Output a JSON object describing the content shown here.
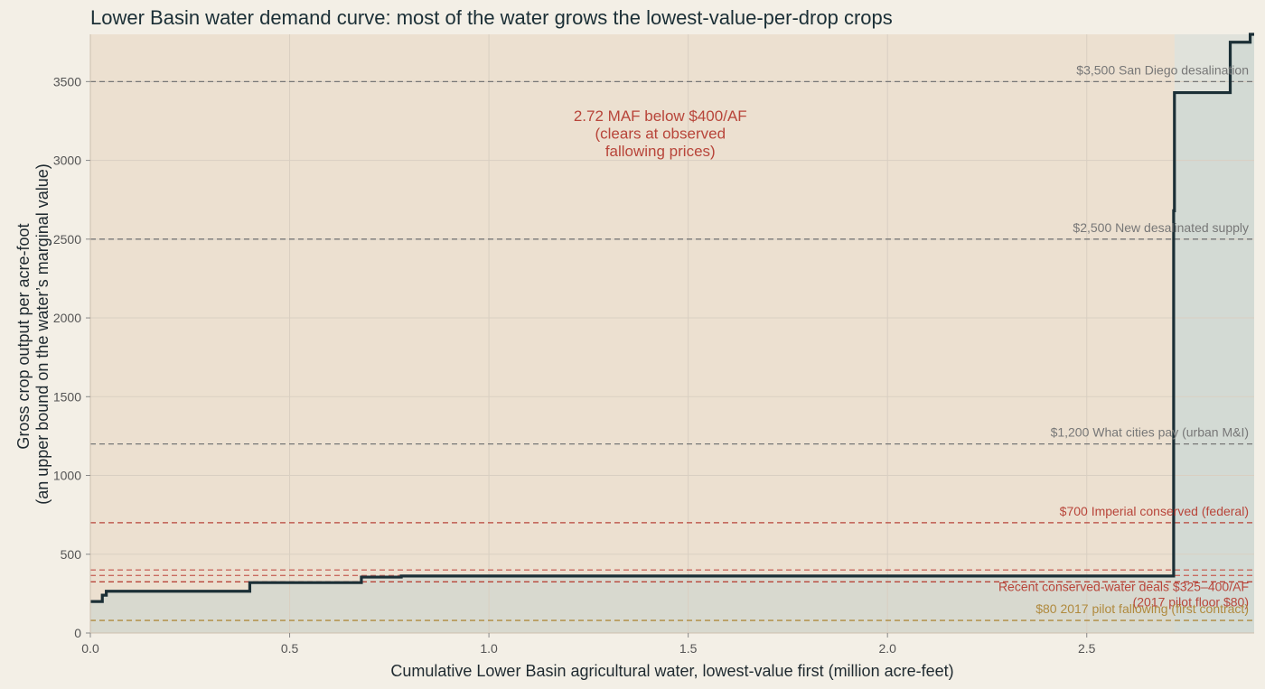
{
  "chart_data": {
    "type": "line",
    "subtype": "step",
    "title": "Lower Basin water demand curve: most of the water grows the lowest-value-per-drop crops",
    "xlabel": "Cumulative Lower Basin agricultural water, lowest-value first  (million acre-feet)",
    "ylabel": [
      "Gross crop output per acre-foot",
      "(an upper bound on the water’s marginal value)"
    ],
    "xlim": [
      0,
      2.92
    ],
    "ylim": [
      0,
      3800
    ],
    "x_ticks": [
      0.0,
      0.5,
      1.0,
      1.5,
      2.0,
      2.5
    ],
    "x_tick_labels": [
      "0.0",
      "0.5",
      "1.0",
      "1.5",
      "2.0",
      "2.5"
    ],
    "y_ticks": [
      0,
      500,
      1000,
      1500,
      2000,
      2500,
      3000,
      3500
    ],
    "y_tick_labels": [
      "0",
      "500",
      "1000",
      "1500",
      "2000",
      "2500",
      "3000",
      "3500"
    ],
    "grid": true,
    "series": [
      {
        "color": "#1b2f36",
        "steps": [
          {
            "x0": 0.0,
            "x1": 0.03,
            "y": 200
          },
          {
            "x0": 0.03,
            "x1": 0.04,
            "y": 240
          },
          {
            "x0": 0.04,
            "x1": 0.4,
            "y": 265
          },
          {
            "x0": 0.4,
            "x1": 0.68,
            "y": 320
          },
          {
            "x0": 0.68,
            "x1": 0.78,
            "y": 355
          },
          {
            "x0": 0.78,
            "x1": 2.718,
            "y": 362
          },
          {
            "x0": 2.718,
            "x1": 2.72,
            "y": 2680
          },
          {
            "x0": 2.72,
            "x1": 2.86,
            "y": 3430
          },
          {
            "x0": 2.86,
            "x1": 2.91,
            "y": 3750
          },
          {
            "x0": 2.91,
            "x1": 2.92,
            "y": 3800
          }
        ]
      }
    ],
    "shaded_regions": [
      {
        "x0": 0.0,
        "x1": 2.72,
        "color": "#e8d2b9"
      },
      {
        "x0": 2.72,
        "x1": 2.92,
        "color": "#c8d8d4"
      }
    ],
    "reference_lines": [
      {
        "y": 3500,
        "label": "$3,500  San Diego desalination",
        "color": "#777777"
      },
      {
        "y": 2500,
        "label": "$2,500  New desalinated supply",
        "color": "#777777"
      },
      {
        "y": 1200,
        "label": "$1,200  What cities pay (urban M&I)",
        "color": "#777777"
      },
      {
        "y": 700,
        "label": "$700  Imperial conserved (federal)",
        "color": "#b8453a"
      },
      {
        "y": 400,
        "label": "",
        "color": "#c96a60"
      },
      {
        "y": 365,
        "label": "",
        "color": "#c96a60"
      },
      {
        "y": 325,
        "label": "Recent conserved-water deals  $325–400/AF\n(2017 pilot floor $80)",
        "color": "#b8453a"
      },
      {
        "y": 80,
        "label": "$80  2017 pilot fallowing (first contract)",
        "color": "#b08a3e"
      }
    ],
    "annotations": [
      {
        "text": [
          "2.72 MAF below $400/AF",
          "(clears at observed",
          "fallowing prices)"
        ],
        "x": 1.43,
        "y": 3250,
        "color": "#b8453a"
      }
    ]
  }
}
